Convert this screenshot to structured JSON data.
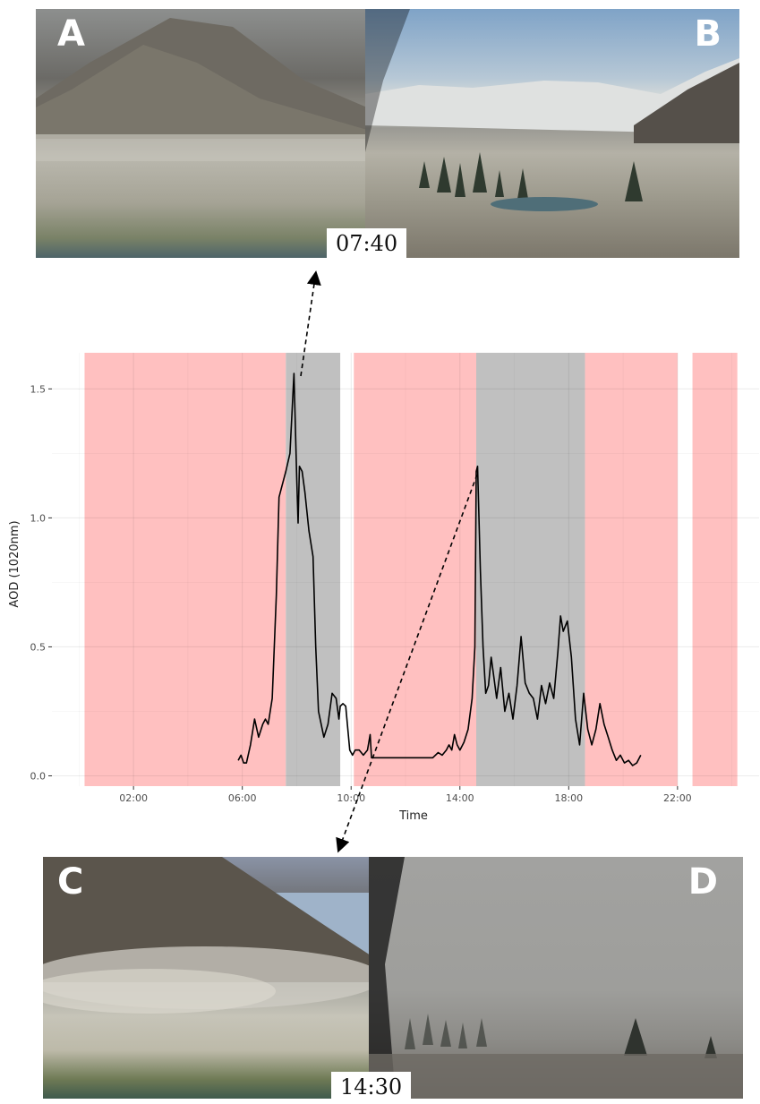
{
  "top_panels": {
    "left_letter": "A",
    "right_letter": "B",
    "time_label": "07:40"
  },
  "bottom_panels": {
    "left_letter": "C",
    "right_letter": "D",
    "time_label": "14:30"
  },
  "colors": {
    "pink_band": "#ffc0c0",
    "gray_band": "#c0c0c0",
    "line": "#000000",
    "grid": "#e6e6e6"
  },
  "chart_data": {
    "type": "line",
    "xlabel": "Time",
    "ylabel": "AOD (1020nm)",
    "xlim": [
      -1.0,
      25.0
    ],
    "ylim": [
      -0.04,
      1.64
    ],
    "x_ticks": [
      {
        "value": 2,
        "label": "02:00"
      },
      {
        "value": 6,
        "label": "06:00"
      },
      {
        "value": 10,
        "label": "10:00"
      },
      {
        "value": 14,
        "label": "14:00"
      },
      {
        "value": 18,
        "label": "18:00"
      },
      {
        "value": 22,
        "label": "22:00"
      }
    ],
    "y_ticks": [
      {
        "value": 0.0,
        "label": "0.0"
      },
      {
        "value": 0.5,
        "label": "0.5"
      },
      {
        "value": 1.0,
        "label": "1.0"
      },
      {
        "value": 1.5,
        "label": "1.5"
      }
    ],
    "bands": [
      {
        "start": 0.2,
        "end": 7.6,
        "kind": "pink"
      },
      {
        "start": 7.6,
        "end": 9.6,
        "kind": "gray"
      },
      {
        "start": 10.1,
        "end": 14.6,
        "kind": "pink"
      },
      {
        "start": 14.6,
        "end": 18.6,
        "kind": "gray"
      },
      {
        "start": 18.6,
        "end": 22.0,
        "kind": "pink"
      },
      {
        "start": 22.55,
        "end": 24.2,
        "kind": "pink"
      }
    ],
    "series": [
      {
        "x": [
          5.85,
          5.95,
          6.05,
          6.15,
          6.3,
          6.45,
          6.6,
          6.75,
          6.85,
          6.95,
          7.1,
          7.25,
          7.35,
          7.45,
          7.6,
          7.75,
          7.9,
          8.0,
          8.05,
          8.1,
          8.2,
          8.3,
          8.45,
          8.6,
          8.7,
          8.8,
          8.9,
          9.0,
          9.15,
          9.3,
          9.45,
          9.55,
          9.6,
          9.7,
          9.8,
          9.95,
          10.05,
          10.15,
          10.3,
          10.45,
          10.6,
          10.7,
          10.75,
          10.9,
          11.0,
          11.5,
          12.0,
          12.5,
          13.0,
          13.2,
          13.35,
          13.5,
          13.6,
          13.7,
          13.8,
          13.9,
          14.0,
          14.15,
          14.3,
          14.45,
          14.55,
          14.6,
          14.65,
          14.75,
          14.85,
          14.95,
          15.05,
          15.15,
          15.25,
          15.35,
          15.5,
          15.65,
          15.8,
          15.95,
          16.1,
          16.25,
          16.4,
          16.55,
          16.7,
          16.85,
          17.0,
          17.15,
          17.3,
          17.45,
          17.6,
          17.7,
          17.8,
          17.95,
          18.1,
          18.25,
          18.4,
          18.55,
          18.7,
          18.85,
          19.0,
          19.15,
          19.3,
          19.45,
          19.6,
          19.75,
          19.9,
          20.05,
          20.2,
          20.35,
          20.5,
          20.65
        ],
        "y": [
          0.06,
          0.08,
          0.05,
          0.05,
          0.12,
          0.22,
          0.15,
          0.2,
          0.22,
          0.2,
          0.3,
          0.7,
          1.08,
          1.12,
          1.18,
          1.25,
          1.56,
          1.15,
          0.98,
          1.2,
          1.18,
          1.1,
          0.95,
          0.85,
          0.5,
          0.25,
          0.2,
          0.15,
          0.2,
          0.32,
          0.3,
          0.22,
          0.27,
          0.28,
          0.27,
          0.1,
          0.08,
          0.1,
          0.1,
          0.08,
          0.1,
          0.16,
          0.07,
          0.07,
          0.07,
          0.07,
          0.07,
          0.07,
          0.07,
          0.09,
          0.08,
          0.1,
          0.12,
          0.1,
          0.16,
          0.12,
          0.1,
          0.13,
          0.18,
          0.3,
          0.5,
          1.18,
          1.2,
          0.8,
          0.5,
          0.32,
          0.35,
          0.46,
          0.38,
          0.3,
          0.42,
          0.25,
          0.32,
          0.22,
          0.35,
          0.54,
          0.36,
          0.32,
          0.3,
          0.22,
          0.35,
          0.28,
          0.36,
          0.3,
          0.48,
          0.62,
          0.56,
          0.6,
          0.46,
          0.22,
          0.12,
          0.32,
          0.18,
          0.12,
          0.18,
          0.28,
          0.2,
          0.15,
          0.1,
          0.06,
          0.08,
          0.05,
          0.06,
          0.04,
          0.05,
          0.08
        ]
      }
    ]
  }
}
